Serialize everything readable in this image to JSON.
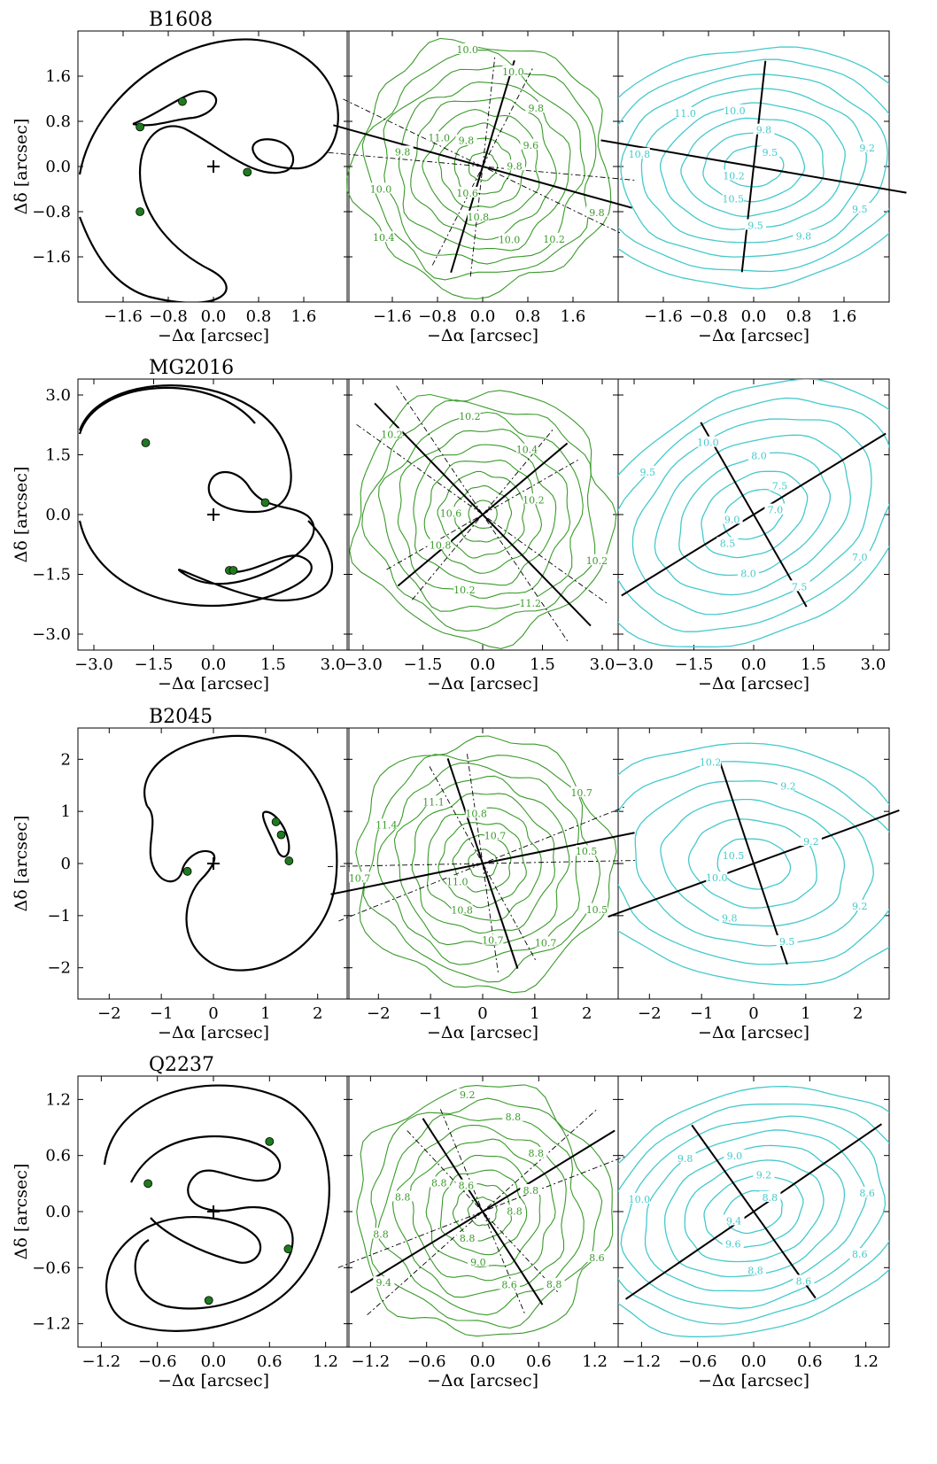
{
  "axis_labels": {
    "x": "−Δα  [arcsec]",
    "y": "Δδ  [arcsec]"
  },
  "colors": {
    "curve": "#000000",
    "image_marker": "#1e7a1e",
    "mass_contour": "#3a9a2a",
    "light_contour": "#45c9cc"
  },
  "chart_data": [
    {
      "type": "line",
      "title": "B1608",
      "xlim": [
        -2.4,
        2.4
      ],
      "ylim": [
        -2.4,
        2.4
      ],
      "xticks": [
        -1.6,
        -0.8,
        0.0,
        0.8,
        1.6
      ],
      "yticks": [
        -1.6,
        -0.8,
        0.0,
        0.8,
        1.6
      ],
      "xtick_labels": [
        "−1.6",
        "−0.8",
        "0.0",
        "0.8",
        "1.6"
      ],
      "ytick_labels": [
        "−1.6",
        "−0.8",
        "0.0",
        "0.8",
        "1.6"
      ],
      "images": [
        [
          -0.55,
          1.15
        ],
        [
          -1.3,
          0.7
        ],
        [
          0.6,
          -0.1
        ],
        [
          -1.3,
          -0.8
        ]
      ],
      "source": [
        0.0,
        0.0
      ],
      "mass_contour_labels": [
        "9.8",
        "10.2",
        "10.0",
        "10.8",
        "10.6",
        "10.4",
        "10.0",
        "9.8",
        "11.0",
        "9.8",
        "10.0",
        "10.0",
        "9.8",
        "9.6",
        "9.8"
      ],
      "light_contour_labels": [
        "9.5",
        "9.8",
        "9.5",
        "10.5",
        "10.2",
        "10.8",
        "11.0",
        "10.0",
        "9.8",
        "9.5",
        "9.2"
      ],
      "light_levels": [
        9.2,
        9.5,
        9.8,
        10.0,
        10.2,
        10.5,
        10.8,
        11.0
      ]
    },
    {
      "type": "line",
      "title": "MG2016",
      "xlim": [
        -3.4,
        3.4
      ],
      "ylim": [
        -3.4,
        3.4
      ],
      "xticks": [
        -3.0,
        -1.5,
        0.0,
        1.5,
        3.0
      ],
      "yticks": [
        -3.0,
        -1.5,
        0.0,
        1.5,
        3.0
      ],
      "xtick_labels": [
        "−3.0",
        "−1.5",
        "0.0",
        "1.5",
        "3.0"
      ],
      "ytick_labels": [
        "−3.0",
        "−1.5",
        "0.0",
        "1.5",
        "3.0"
      ],
      "images": [
        [
          -1.7,
          1.8
        ],
        [
          1.3,
          0.3
        ],
        [
          0.4,
          -1.4
        ],
        [
          0.5,
          -1.4
        ]
      ],
      "source": [
        0.0,
        0.0
      ],
      "mass_contour_labels": [
        "10.2",
        "11.2",
        "10.2",
        "10.8",
        "10.6",
        "10.2",
        "10.2",
        "10.4",
        "10.2"
      ],
      "light_contour_labels": [
        "7.0",
        "7.5",
        "8.0",
        "8.5",
        "9.0",
        "9.5",
        "10.0",
        "8.0",
        "7.5",
        "7.0"
      ],
      "light_levels": [
        7.0,
        7.5,
        8.0,
        8.5,
        9.0,
        9.5,
        10.0
      ]
    },
    {
      "type": "line",
      "title": "B2045",
      "xlim": [
        -2.6,
        2.6
      ],
      "ylim": [
        -2.6,
        2.6
      ],
      "xticks": [
        -2,
        -1,
        0,
        1,
        2
      ],
      "yticks": [
        -2,
        -1,
        0,
        1,
        2
      ],
      "xtick_labels": [
        "−2",
        "−1",
        "0",
        "1",
        "2"
      ],
      "ytick_labels": [
        "−2",
        "−1",
        "0",
        "1",
        "2"
      ],
      "images": [
        [
          -0.5,
          -0.15
        ],
        [
          1.2,
          0.8
        ],
        [
          1.3,
          0.55
        ],
        [
          1.45,
          0.05
        ]
      ],
      "source": [
        0.0,
        0.0
      ],
      "mass_contour_labels": [
        "10.5",
        "10.7",
        "10.7",
        "10.8",
        "11.0",
        "10.7",
        "11.4",
        "11.1",
        "10.8",
        "10.7",
        "10.7",
        "10.5"
      ],
      "light_contour_labels": [
        "9.2",
        "9.5",
        "9.8",
        "10.0",
        "10.5",
        "10.2",
        "9.2",
        "9.2"
      ],
      "light_levels": [
        9.2,
        9.5,
        9.8,
        10.0,
        10.2,
        10.5
      ]
    },
    {
      "type": "line",
      "title": "Q2237",
      "xlim": [
        -1.45,
        1.45
      ],
      "ylim": [
        -1.45,
        1.45
      ],
      "xticks": [
        -1.2,
        -0.6,
        0.0,
        0.6,
        1.2
      ],
      "yticks": [
        -1.2,
        -0.6,
        0.0,
        0.6,
        1.2
      ],
      "xtick_labels": [
        "−1.2",
        "−0.6",
        "0.0",
        "0.6",
        "1.2"
      ],
      "ytick_labels": [
        "−1.2",
        "−0.6",
        "0.0",
        "0.6",
        "1.2"
      ],
      "images": [
        [
          0.6,
          0.75
        ],
        [
          -0.7,
          0.3
        ],
        [
          0.8,
          -0.4
        ],
        [
          -0.05,
          -0.95
        ]
      ],
      "source": [
        0.0,
        0.0
      ],
      "mass_contour_labels": [
        "8.6",
        "8.8",
        "8.6",
        "9.0",
        "8.8",
        "9.4",
        "8.8",
        "8.8",
        "8.8",
        "8.6",
        "9.2",
        "8.8",
        "8.8",
        "8.8",
        "8.8"
      ],
      "light_contour_labels": [
        "8.6",
        "8.6",
        "8.8",
        "9.6",
        "9.4",
        "10.0",
        "9.8",
        "9.0",
        "9.2",
        "8.8",
        "8.6"
      ],
      "light_levels": [
        8.6,
        8.8,
        9.0,
        9.2,
        9.4,
        9.6,
        9.8,
        10.0
      ]
    }
  ]
}
